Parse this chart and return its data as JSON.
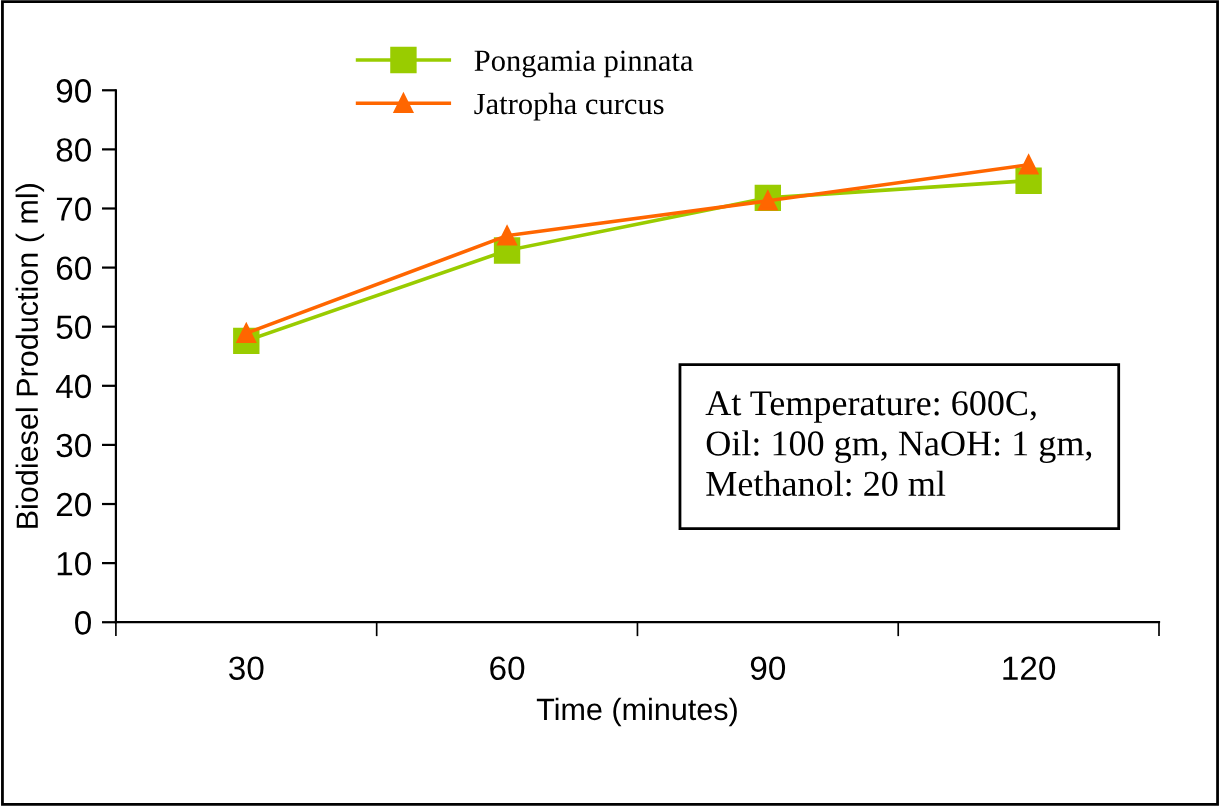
{
  "chart_data": {
    "type": "line",
    "xlabel": "Time (minutes)",
    "ylabel": "Biodiesel Production ( ml)",
    "categories": [
      "30",
      "60",
      "90",
      "120"
    ],
    "series": [
      {
        "name": "Pongamia pinnata",
        "color": "#99cc00",
        "marker": "square",
        "values": [
          47.6,
          62.9,
          71.8,
          74.7
        ]
      },
      {
        "name": "Jatropha curcus",
        "color": "#ff6600",
        "marker": "triangle",
        "values": [
          48.9,
          65.4,
          71.3,
          77.4
        ]
      }
    ],
    "ylim": [
      0,
      90
    ],
    "yticks": [
      0,
      10,
      20,
      30,
      40,
      50,
      60,
      70,
      80,
      90
    ],
    "grid": false,
    "legend": "top left",
    "annotations": [
      "At Temperature: 600C,\nOil: 100 gm, NaOH: 1 gm,\nMethanol: 20 ml"
    ]
  }
}
